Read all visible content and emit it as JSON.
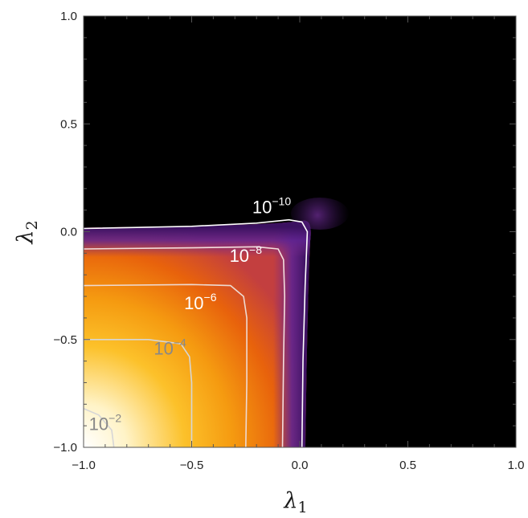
{
  "chart_data": {
    "type": "heatmap",
    "title": "",
    "xlabel": "λ",
    "xlabel_sub": "1",
    "ylabel": "λ",
    "ylabel_sub": "2",
    "xlim": [
      -1.0,
      1.0
    ],
    "ylim": [
      -1.0,
      1.0
    ],
    "x_ticks": [
      {
        "value": -1.0,
        "label": "−1.0"
      },
      {
        "value": -0.5,
        "label": "−0.5"
      },
      {
        "value": 0.0,
        "label": "0.0"
      },
      {
        "value": 0.5,
        "label": "0.5"
      },
      {
        "value": 1.0,
        "label": "1.0"
      }
    ],
    "y_ticks": [
      {
        "value": -1.0,
        "label": "−1.0"
      },
      {
        "value": -0.5,
        "label": "−0.5"
      },
      {
        "value": 0.0,
        "label": "0.0"
      },
      {
        "value": 0.5,
        "label": "0.5"
      },
      {
        "value": 1.0,
        "label": "1.0"
      }
    ],
    "grid": false,
    "legend": "none",
    "colormap": [
      "#000000",
      "#3b1160",
      "#6f2d96",
      "#c33f3f",
      "#e8620c",
      "#f59a10",
      "#fcd24a",
      "#ffffff"
    ],
    "contours": [
      {
        "level": 1e-10,
        "base": "10",
        "exponent": "−10",
        "label_at": [
          -0.13,
          0.085
        ],
        "color": "#ffffff",
        "label_color": "#ffffff",
        "path": [
          [
            -1.0,
            0.015
          ],
          [
            -0.5,
            0.025
          ],
          [
            -0.2,
            0.04
          ],
          [
            -0.05,
            0.055
          ],
          [
            0.01,
            0.045
          ],
          [
            0.035,
            0.0
          ],
          [
            0.025,
            -0.25
          ],
          [
            0.015,
            -0.6
          ],
          [
            0.01,
            -1.0
          ]
        ]
      },
      {
        "level": 1e-08,
        "base": "10",
        "exponent": "−8",
        "label_at": [
          -0.25,
          -0.14
        ],
        "color": "#f3dede",
        "label_color": "#ffffff",
        "path": [
          [
            -1.0,
            -0.08
          ],
          [
            -0.5,
            -0.075
          ],
          [
            -0.2,
            -0.07
          ],
          [
            -0.1,
            -0.08
          ],
          [
            -0.075,
            -0.13
          ],
          [
            -0.07,
            -0.3
          ],
          [
            -0.075,
            -0.6
          ],
          [
            -0.08,
            -1.0
          ]
        ]
      },
      {
        "level": 1e-06,
        "base": "10",
        "exponent": "−6",
        "label_at": [
          -0.46,
          -0.36
        ],
        "color": "#eedad2",
        "label_color": "#ffffff",
        "path": [
          [
            -1.0,
            -0.25
          ],
          [
            -0.5,
            -0.245
          ],
          [
            -0.32,
            -0.25
          ],
          [
            -0.26,
            -0.3
          ],
          [
            -0.245,
            -0.4
          ],
          [
            -0.245,
            -0.7
          ],
          [
            -0.25,
            -1.0
          ]
        ]
      },
      {
        "level": 0.0001,
        "base": "10",
        "exponent": "−4",
        "label_at": [
          -0.6,
          -0.57
        ],
        "color": "#d6d6d6",
        "label_color": "#888888",
        "path": [
          [
            -1.0,
            -0.5
          ],
          [
            -0.7,
            -0.5
          ],
          [
            -0.55,
            -0.52
          ],
          [
            -0.51,
            -0.58
          ],
          [
            -0.5,
            -0.7
          ],
          [
            -0.5,
            -1.0
          ]
        ]
      },
      {
        "level": 0.01,
        "base": "10",
        "exponent": "−2",
        "label_at": [
          -0.9,
          -0.92
        ],
        "color": "#d6d6d6",
        "label_color": "#888888",
        "path": [
          [
            -1.0,
            -0.82
          ],
          [
            -0.93,
            -0.85
          ],
          [
            -0.87,
            -0.92
          ],
          [
            -0.86,
            -1.0
          ]
        ]
      }
    ]
  }
}
